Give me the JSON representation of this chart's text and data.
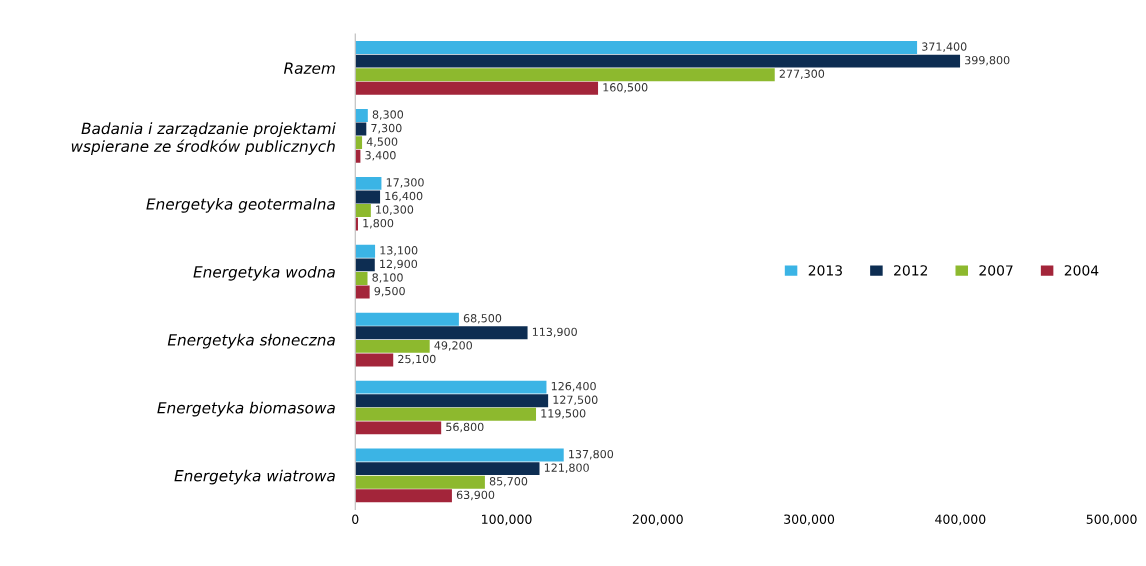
{
  "chart_data": {
    "type": "bar",
    "orientation": "horizontal",
    "categories": [
      "Razem",
      "Badania i zarządzanie projektami\nwspierane ze środków publicznych",
      "Energetyka geotermalna",
      "Energetyka wodna",
      "Energetyka słoneczna",
      "Energetyka biomasowa",
      "Energetyka wiatrowa"
    ],
    "series": [
      {
        "name": "2013",
        "color": "#3bb4e5",
        "values": [
          371400,
          8300,
          17300,
          13100,
          68500,
          126400,
          137800
        ],
        "value_labels": [
          "371,400",
          "8,300",
          "17,300",
          "13,100",
          "68,500",
          "126,400",
          "137,800"
        ]
      },
      {
        "name": "2012",
        "color": "#0d2d52",
        "values": [
          399800,
          7300,
          16400,
          12900,
          113900,
          127500,
          121800
        ],
        "value_labels": [
          "399,800",
          "7,300",
          "16,400",
          "12,900",
          "113,900",
          "127,500",
          "121,800"
        ]
      },
      {
        "name": "2007",
        "color": "#8db92e",
        "values": [
          277300,
          4500,
          10300,
          8100,
          49200,
          119500,
          85700
        ],
        "value_labels": [
          "277,300",
          "4,500",
          "10,300",
          "8,100",
          "49,200",
          "119,500",
          "85,700"
        ]
      },
      {
        "name": "2004",
        "color": "#a3253a",
        "values": [
          160500,
          3400,
          1800,
          9500,
          25100,
          56800,
          63900
        ],
        "value_labels": [
          "160,500",
          "3,400",
          "1,800",
          "9,500",
          "25,100",
          "56,800",
          "63,900"
        ]
      }
    ],
    "xlim": [
      0,
      500000
    ],
    "xticks": [
      0,
      {
        "value": 100000,
        "label": "100,000"
      },
      {
        "value": 200000,
        "label": "200,000"
      },
      {
        "value": 300000,
        "label": "300,000"
      },
      {
        "value": 400000,
        "label": "400,000"
      },
      {
        "value": 500000,
        "label": "500,000"
      }
    ],
    "grid": false,
    "legend": "right"
  }
}
